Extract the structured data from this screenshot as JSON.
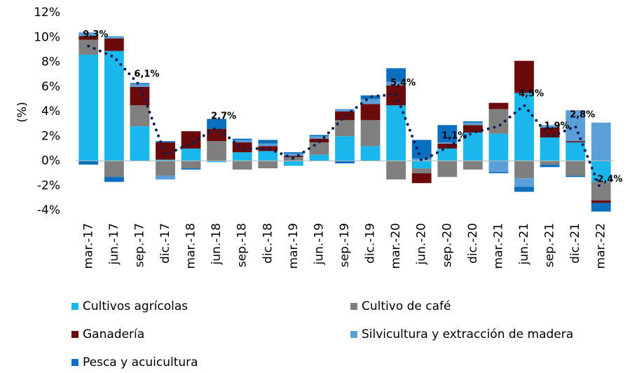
{
  "chart_data": {
    "type": "bar",
    "stacked": true,
    "y_label": "(%)",
    "categories": [
      "mar.-17",
      "jun.-17",
      "sep.-17",
      "dic.-17",
      "mar.-18",
      "jun.-18",
      "sep.-18",
      "dic.-18",
      "mar.-19",
      "jun.-19",
      "sep.-19",
      "dic.-19",
      "mar.-20",
      "jun.-20",
      "sep.-20",
      "dic.-20",
      "mar.-21",
      "jun.-21",
      "sep.-21",
      "dic.-21",
      "mar.-22"
    ],
    "series": [
      {
        "name": "Cultivos agrícolas",
        "color": "#1ab7ec",
        "values": [
          8.6,
          8.9,
          2.8,
          0.1,
          1.0,
          -0.1,
          0.7,
          0.8,
          -0.4,
          0.5,
          2.0,
          1.2,
          4.5,
          -0.6,
          1.0,
          2.3,
          2.2,
          5.5,
          1.9,
          1.5,
          -1.7
        ]
      },
      {
        "name": "Cultivo de café",
        "color": "#7f7f7f",
        "values": [
          1.2,
          -1.3,
          1.7,
          -1.2,
          -0.6,
          1.6,
          -0.7,
          -0.6,
          0.3,
          1.0,
          1.3,
          2.1,
          -1.5,
          -0.4,
          -1.3,
          -0.7,
          2.0,
          -1.4,
          -0.3,
          -1.2,
          -1.5
        ]
      },
      {
        "name": "Ganadería",
        "color": "#6b0a0a",
        "values": [
          0.3,
          1.0,
          1.5,
          1.4,
          1.4,
          1.0,
          0.8,
          0.4,
          0.1,
          0.3,
          0.7,
          1.3,
          1.6,
          -0.8,
          0.4,
          0.6,
          0.5,
          2.6,
          0.8,
          0.1,
          -0.2
        ]
      },
      {
        "name": "Silvicultura y extracción de madera",
        "color": "#5b9fd8",
        "values": [
          0.3,
          0.2,
          0.2,
          -0.3,
          0,
          0,
          0.2,
          0.2,
          0.2,
          0.2,
          0.2,
          0.4,
          0.3,
          0.2,
          0.1,
          0.2,
          -0.9,
          -0.7,
          0.2,
          2.5,
          3.1
        ]
      },
      {
        "name": "Pesca y acuicultura",
        "color": "#0a6fbf",
        "values": [
          -0.3,
          -0.4,
          0.1,
          0.1,
          -0.1,
          0.8,
          0.1,
          0.3,
          0.1,
          0.1,
          -0.2,
          0.3,
          1.1,
          1.5,
          1.4,
          0.1,
          -0.1,
          -0.4,
          -0.2,
          -0.1,
          -0.7
        ]
      }
    ],
    "line": {
      "color": "#0d1f4f",
      "values": [
        9.3,
        8.4,
        6.1,
        0.5,
        1.4,
        2.7,
        1.0,
        1.0,
        0.2,
        1.5,
        3.6,
        5.2,
        5.4,
        0.0,
        1.1,
        2.3,
        2.8,
        4.5,
        1.9,
        2.8,
        -2.4
      ],
      "value_labels": [
        "9,3%",
        null,
        "6,1%",
        null,
        null,
        "2,7%",
        null,
        null,
        null,
        null,
        null,
        null,
        "5,4%",
        null,
        "1,1%",
        null,
        null,
        "4,5%",
        "1,9%",
        "2,8%",
        "-2,4%"
      ]
    },
    "ylim": [
      -4,
      12
    ],
    "yticks": [
      {
        "value": -4,
        "label": "-4%"
      },
      {
        "value": -2,
        "label": "-2%"
      },
      {
        "value": 0,
        "label": "0%"
      },
      {
        "value": 2,
        "label": "2%"
      },
      {
        "value": 4,
        "label": "4%"
      },
      {
        "value": 6,
        "label": "6%"
      },
      {
        "value": 8,
        "label": "8%"
      },
      {
        "value": 10,
        "label": "10%"
      },
      {
        "value": 12,
        "label": "12%"
      }
    ]
  }
}
